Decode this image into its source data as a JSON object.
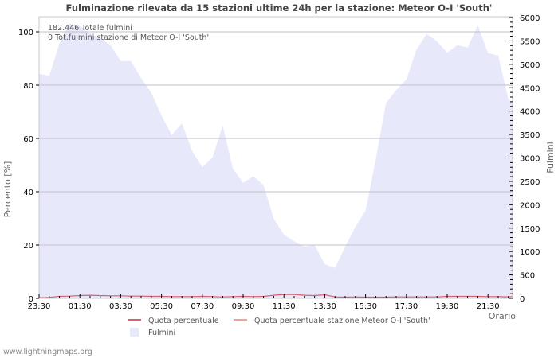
{
  "title": "Fulminazione rilevata da 15 stazioni ultime 24h per la stazione: Meteor O-I  'South'",
  "info": {
    "total": "182.446 Totale fulmini",
    "station_total": "0 Tot.fulmini stazione di Meteor O-I  'South'"
  },
  "axes": {
    "left_title": "Percento   [%]",
    "right_title": "Fulmini",
    "x_title": "Orario"
  },
  "legend": {
    "items": [
      {
        "label": "Quota percentuale",
        "color": "#d9606e",
        "type": "line"
      },
      {
        "label": "Quota percentuale stazione Meteor O-I  'South'",
        "color": "#f0a0a0",
        "type": "line"
      },
      {
        "label": "Fulmini",
        "color": "#e8e8fb",
        "type": "area"
      }
    ]
  },
  "footer": "www.lightningmaps.org",
  "colors": {
    "area": "#e8e8fb",
    "line": "#d9606e",
    "grid": "#c0c0c8"
  },
  "chart_data": {
    "type": "area",
    "title": "Fulminazione rilevata da 15 stazioni ultime 24h per la stazione: Meteor O-I  'South'",
    "xlabel": "Orario",
    "ylabel": "Percento   [%]",
    "ylabel_right": "Fulmini",
    "ylim": [
      0,
      105
    ],
    "ylim_right": [
      0,
      6000
    ],
    "x_ticks": [
      "23:30",
      "01:30",
      "03:30",
      "05:30",
      "07:30",
      "09:30",
      "11:30",
      "13:30",
      "15:30",
      "17:30",
      "19:30",
      "21:30"
    ],
    "y_ticks_left": [
      0,
      20,
      40,
      60,
      80,
      100
    ],
    "y_ticks_right": [
      0,
      500,
      1000,
      1500,
      2000,
      2500,
      3000,
      3500,
      4000,
      4500,
      5000,
      5500,
      6000
    ],
    "grid": true,
    "legend_position": "bottom",
    "x": [
      "23:30",
      "00:00",
      "00:30",
      "01:00",
      "01:30",
      "02:00",
      "02:30",
      "03:00",
      "03:30",
      "04:00",
      "04:30",
      "05:00",
      "05:30",
      "06:00",
      "06:30",
      "07:00",
      "07:30",
      "08:00",
      "08:30",
      "09:00",
      "09:30",
      "10:00",
      "10:30",
      "11:00",
      "11:30",
      "12:00",
      "12:30",
      "13:00",
      "13:30",
      "14:00",
      "14:30",
      "15:00",
      "15:30",
      "16:00",
      "16:30",
      "17:00",
      "17:30",
      "18:00",
      "18:30",
      "19:00",
      "19:30",
      "20:00",
      "20:30",
      "21:00",
      "21:30",
      "22:00",
      "22:30",
      "22:45"
    ],
    "series": [
      {
        "name": "Fulmini",
        "axis": "right",
        "values": [
          4800,
          4750,
          5450,
          5870,
          5820,
          5660,
          5560,
          5410,
          5070,
          5070,
          4710,
          4390,
          3910,
          3490,
          3740,
          3150,
          2800,
          3010,
          3690,
          2770,
          2470,
          2610,
          2420,
          1700,
          1360,
          1220,
          1100,
          1140,
          730,
          650,
          1100,
          1530,
          1870,
          2970,
          4170,
          4450,
          4680,
          5320,
          5650,
          5490,
          5250,
          5410,
          5360,
          5830,
          5240,
          5190,
          4250,
          4200
        ]
      },
      {
        "name": "Quota percentuale",
        "axis": "left",
        "values": [
          0.1,
          0.2,
          0.6,
          0.7,
          0.9,
          1.0,
          0.9,
          0.8,
          0.8,
          0.7,
          0.7,
          0.6,
          0.6,
          0.5,
          0.5,
          0.5,
          0.6,
          0.5,
          0.4,
          0.5,
          0.6,
          0.5,
          0.6,
          1.0,
          1.3,
          1.3,
          1.0,
          0.9,
          1.2,
          0.4,
          0.3,
          0.4,
          0.3,
          0.3,
          0.3,
          0.4,
          0.4,
          0.4,
          0.4,
          0.4,
          0.6,
          0.6,
          0.6,
          0.6,
          0.5,
          0.5,
          0.4,
          0.5
        ]
      },
      {
        "name": "Quota percentuale stazione Meteor O-I  'South'",
        "axis": "left",
        "values": [
          0,
          0,
          0,
          0,
          0,
          0,
          0,
          0,
          0,
          0,
          0,
          0,
          0,
          0,
          0,
          0,
          0,
          0,
          0,
          0,
          0,
          0,
          0,
          0,
          0,
          0,
          0,
          0,
          0,
          0,
          0,
          0,
          0,
          0,
          0,
          0,
          0,
          0,
          0,
          0,
          0,
          0,
          0,
          0,
          0,
          0,
          0,
          0
        ]
      }
    ]
  }
}
